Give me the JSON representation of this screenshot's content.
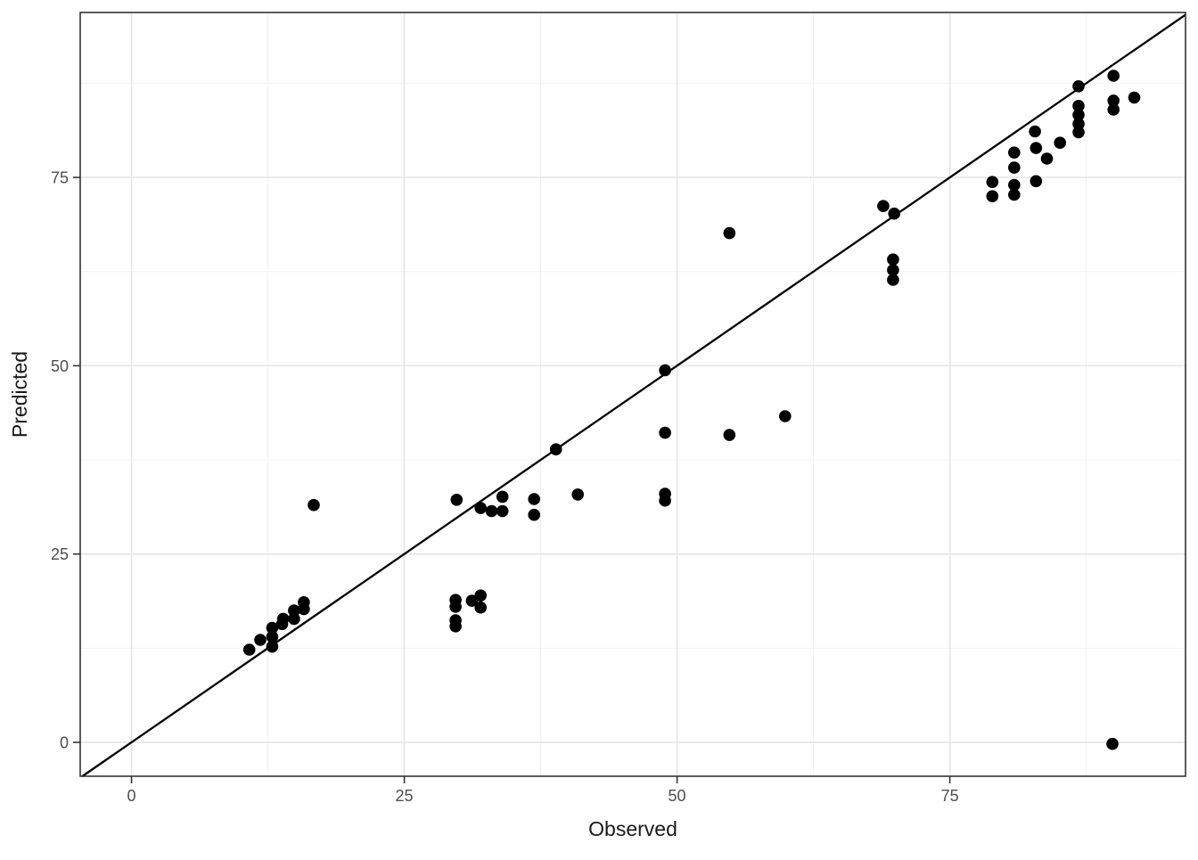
{
  "figure": {
    "background": "#ffffff",
    "panel_background": "#ffffff",
    "panel_border_color": "#333333",
    "grid_major_color": "#e5e5e5",
    "grid_minor_color": "#f2f2f2",
    "tick_mark_color": "#333333",
    "tick_label_color": "#4d4d4d",
    "axis_title_color": "#1a1a1a",
    "point_color": "#000000",
    "line_color": "#000000"
  },
  "chart_data": {
    "type": "scatter",
    "title": "",
    "xlabel": "Observed",
    "ylabel": "Predicted",
    "xlim": [
      -4.7,
      96.6
    ],
    "ylim": [
      -4.5,
      96.9
    ],
    "x_major_ticks": [
      0,
      25,
      50,
      75
    ],
    "y_major_ticks": [
      0,
      25,
      50,
      75
    ],
    "x_minor_ticks": [
      12.5,
      37.5,
      62.5,
      87.5
    ],
    "y_minor_ticks": [
      12.5,
      37.5,
      62.5,
      87.5
    ],
    "grid": true,
    "legend_position": "none",
    "reference_line": {
      "type": "identity",
      "slope": 1,
      "intercept": 0
    },
    "series": [
      {
        "name": "predicted-vs-observed",
        "points": [
          [
            10.8,
            12.3
          ],
          [
            11.8,
            13.6
          ],
          [
            12.9,
            12.7
          ],
          [
            12.9,
            14.0
          ],
          [
            12.9,
            15.2
          ],
          [
            13.8,
            15.7
          ],
          [
            13.9,
            16.4
          ],
          [
            14.9,
            16.4
          ],
          [
            14.9,
            17.5
          ],
          [
            15.8,
            17.7
          ],
          [
            15.8,
            18.6
          ],
          [
            16.7,
            31.5
          ],
          [
            29.7,
            18.9
          ],
          [
            29.7,
            18.0
          ],
          [
            29.7,
            16.2
          ],
          [
            29.7,
            15.4
          ],
          [
            31.2,
            18.8
          ],
          [
            32.0,
            19.5
          ],
          [
            32.0,
            17.9
          ],
          [
            29.8,
            32.2
          ],
          [
            32.0,
            31.1
          ],
          [
            33.0,
            30.7
          ],
          [
            34.0,
            32.6
          ],
          [
            34.0,
            30.7
          ],
          [
            36.9,
            32.3
          ],
          [
            36.9,
            30.2
          ],
          [
            38.9,
            38.9
          ],
          [
            40.9,
            32.9
          ],
          [
            48.9,
            49.4
          ],
          [
            48.9,
            41.1
          ],
          [
            48.9,
            33.0
          ],
          [
            48.9,
            32.1
          ],
          [
            54.8,
            67.6
          ],
          [
            54.8,
            40.8
          ],
          [
            59.9,
            43.3
          ],
          [
            68.9,
            71.2
          ],
          [
            69.9,
            70.2
          ],
          [
            69.8,
            64.1
          ],
          [
            69.8,
            62.7
          ],
          [
            69.8,
            61.4
          ],
          [
            78.9,
            74.4
          ],
          [
            78.9,
            72.5
          ],
          [
            80.9,
            78.3
          ],
          [
            80.9,
            76.3
          ],
          [
            80.9,
            74.0
          ],
          [
            80.9,
            72.7
          ],
          [
            82.8,
            81.1
          ],
          [
            82.9,
            78.9
          ],
          [
            82.9,
            74.5
          ],
          [
            83.9,
            77.5
          ],
          [
            85.1,
            79.6
          ],
          [
            86.8,
            87.1
          ],
          [
            86.8,
            84.5
          ],
          [
            86.8,
            83.3
          ],
          [
            86.8,
            82.1
          ],
          [
            86.8,
            81.0
          ],
          [
            90.0,
            88.5
          ],
          [
            90.0,
            85.2
          ],
          [
            90.0,
            84.0
          ],
          [
            91.9,
            85.6
          ],
          [
            89.9,
            -0.2
          ]
        ]
      }
    ]
  }
}
